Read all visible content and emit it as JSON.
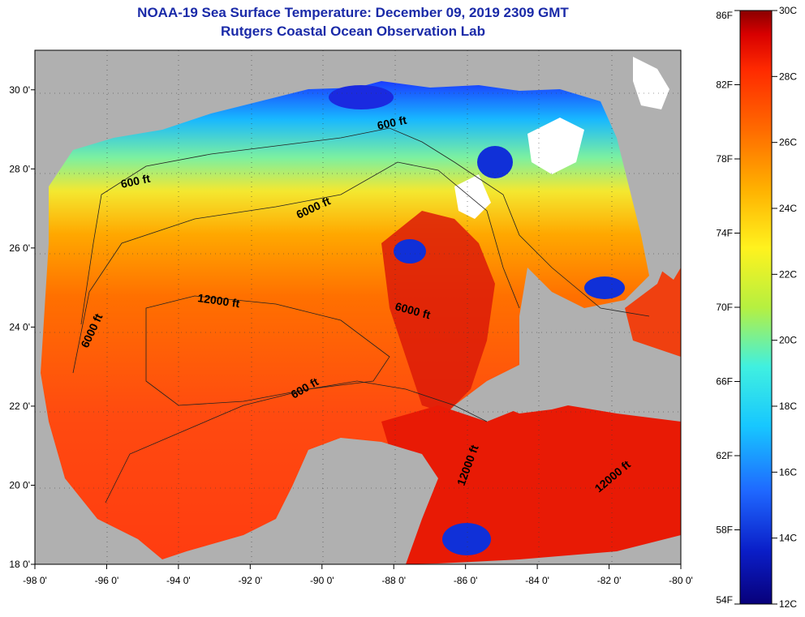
{
  "title": {
    "line1": "NOAA-19 Sea Surface Temperature:  December 09, 2019 2309 GMT",
    "line2": "Rutgers Coastal Ocean Observation Lab"
  },
  "axes": {
    "lon_ticks": [
      "-98 0'",
      "-96 0'",
      "-94 0'",
      "-92 0'",
      "-90 0'",
      "-88 0'",
      "-86 0'",
      "-84 0'",
      "-82 0'",
      "-80 0'"
    ],
    "lat_ticks": [
      "30 0'",
      "28 0'",
      "26 0'",
      "24 0'",
      "22 0'",
      "20 0'",
      "18 0'"
    ],
    "lon_range": [
      -98,
      -80
    ],
    "lat_range": [
      18,
      31
    ]
  },
  "contours": [
    {
      "label": "600 ft"
    },
    {
      "label": "600 ft"
    },
    {
      "label": "6000 ft"
    },
    {
      "label": "12000 ft"
    },
    {
      "label": "6000 ft"
    },
    {
      "label": "6000 ft"
    },
    {
      "label": "600 ft"
    },
    {
      "label": "12000 ft"
    },
    {
      "label": "12000 ft"
    }
  ],
  "colorbar": {
    "fahrenheit": [
      "86F",
      "82F",
      "78F",
      "74F",
      "70F",
      "66F",
      "62F",
      "58F",
      "54F"
    ],
    "celsius": [
      "30C",
      "28C",
      "26C",
      "24C",
      "22C",
      "20C",
      "18C",
      "16C",
      "14C",
      "12C"
    ],
    "range_c": [
      12,
      30
    ],
    "colors": [
      "#08007a",
      "#0a1ec8",
      "#1f68ff",
      "#17c7ff",
      "#40f0e0",
      "#b6f040",
      "#fff21e",
      "#ffb000",
      "#ff6a00",
      "#ff2a00",
      "#d80000",
      "#8a0000"
    ]
  },
  "colors": {
    "land": "#b0b0b0",
    "title": "#1a2aa8",
    "cloud": "#ffffff"
  }
}
